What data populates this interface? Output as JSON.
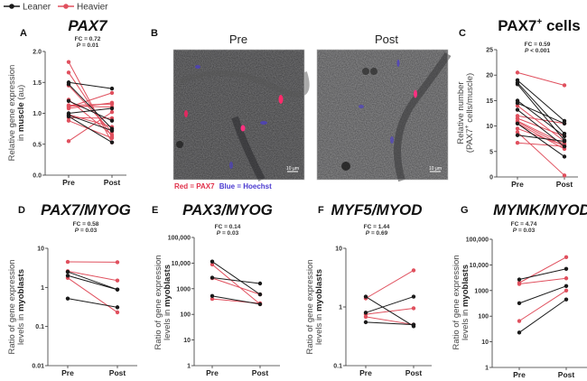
{
  "legend": {
    "items": [
      {
        "label": "Leaner",
        "color": "#1a1a1a"
      },
      {
        "label": "Heavier",
        "color": "#e0505e"
      }
    ]
  },
  "images": {
    "letter": "B",
    "pre_label": "Pre",
    "post_label": "Post",
    "scale_bar": "10 µm",
    "stain_red": "Red = PAX7",
    "stain_blue": "Blue = Hoechst",
    "stain_red_color": "#e0304a",
    "stain_blue_color": "#4a3ad0"
  },
  "chart_data": [
    {
      "panel": "A",
      "type": "line",
      "title": "PAX7",
      "title_italic": true,
      "title_sup": "",
      "stat_fc": "FC = 0.72",
      "stat_p_symbol": "P",
      "stat_p_text": " = 0.01",
      "ylabel": [
        "Relative gene expression",
        "in ",
        "muscle",
        " (au)"
      ],
      "scale": "linear",
      "ylim": [
        0,
        2
      ],
      "yticks": [
        0,
        0.5,
        1,
        1.5,
        2
      ],
      "ytick_labels": [
        "0.0",
        "0.5",
        "1.0",
        "1.5",
        "2.0"
      ],
      "categories": [
        "Pre",
        "Post"
      ],
      "series": [
        {
          "group": "Heavier",
          "values": [
            1.83,
            0.53
          ]
        },
        {
          "group": "Heavier",
          "values": [
            1.66,
            0.62
          ]
        },
        {
          "group": "Leaner",
          "values": [
            1.5,
            1.4
          ]
        },
        {
          "group": "Leaner",
          "values": [
            1.47,
            0.75
          ]
        },
        {
          "group": "Heavier",
          "values": [
            1.45,
            0.7
          ]
        },
        {
          "group": "Heavier",
          "values": [
            1.22,
            0.65
          ]
        },
        {
          "group": "Leaner",
          "values": [
            1.2,
            0.88
          ]
        },
        {
          "group": "Heavier",
          "values": [
            1.13,
            1.15
          ]
        },
        {
          "group": "Heavier",
          "values": [
            1.12,
            1.1
          ]
        },
        {
          "group": "Heavier",
          "values": [
            1.1,
            1.33
          ]
        },
        {
          "group": "Heavier",
          "values": [
            1.08,
            1.17
          ]
        },
        {
          "group": "Leaner",
          "values": [
            1.0,
            1.08
          ]
        },
        {
          "group": "Heavier",
          "values": [
            0.98,
            0.78
          ]
        },
        {
          "group": "Leaner",
          "values": [
            0.97,
            0.72
          ]
        },
        {
          "group": "Leaner",
          "values": [
            0.95,
            0.53
          ]
        },
        {
          "group": "Heavier",
          "values": [
            0.93,
            0.92
          ]
        },
        {
          "group": "Heavier",
          "values": [
            0.88,
            0.6
          ]
        },
        {
          "group": "Heavier",
          "values": [
            0.55,
            1.02
          ]
        }
      ]
    },
    {
      "panel": "C",
      "type": "line",
      "title": "PAX7",
      "title_italic": false,
      "title_sup": "+",
      "title_suffix": " cells",
      "stat_fc": "FC = 0.59",
      "stat_p_symbol": "P",
      "stat_p_text": " < 0.001",
      "ylabel": [
        "Relative number",
        "(PAX7",
        "+",
        " cells/muscle)"
      ],
      "scale": "linear",
      "ylim": [
        0,
        25
      ],
      "yticks": [
        0,
        5,
        10,
        15,
        20,
        25
      ],
      "ytick_labels": [
        "0",
        "5",
        "10",
        "15",
        "20",
        "25"
      ],
      "categories": [
        "Pre",
        "Post"
      ],
      "series": [
        {
          "group": "Heavier",
          "values": [
            20.5,
            18.0
          ]
        },
        {
          "group": "Leaner",
          "values": [
            19.0,
            11.0
          ]
        },
        {
          "group": "Leaner",
          "values": [
            18.5,
            8.5
          ]
        },
        {
          "group": "Leaner",
          "values": [
            18.2,
            7.2
          ]
        },
        {
          "group": "Leaner",
          "values": [
            15.0,
            8.0
          ]
        },
        {
          "group": "Leaner",
          "values": [
            14.5,
            10.5
          ]
        },
        {
          "group": "Heavier",
          "values": [
            14.0,
            7.0
          ]
        },
        {
          "group": "Leaner",
          "values": [
            13.2,
            6.0
          ]
        },
        {
          "group": "Heavier",
          "values": [
            12.0,
            10.5
          ]
        },
        {
          "group": "Heavier",
          "values": [
            11.5,
            8.0
          ]
        },
        {
          "group": "Heavier",
          "values": [
            11.0,
            6.5
          ]
        },
        {
          "group": "Heavier",
          "values": [
            10.8,
            6.0
          ]
        },
        {
          "group": "Heavier",
          "values": [
            10.5,
            5.5
          ]
        },
        {
          "group": "Leaner",
          "values": [
            10.5,
            4.0
          ]
        },
        {
          "group": "Heavier",
          "values": [
            9.5,
            6.2
          ]
        },
        {
          "group": "Heavier",
          "values": [
            8.8,
            0.3
          ]
        },
        {
          "group": "Leaner",
          "values": [
            8.2,
            7.0
          ]
        },
        {
          "group": "Heavier",
          "values": [
            6.7,
            6.0
          ]
        }
      ]
    },
    {
      "panel": "D",
      "type": "line",
      "title": "PAX7/MYOG",
      "title_italic": true,
      "title_sup": "",
      "stat_fc": "FC = 0.58",
      "stat_p_symbol": "P",
      "stat_p_text": " = 0.03",
      "ylabel": [
        "Ratio of gene expression",
        "levels in ",
        "myoblasts",
        ""
      ],
      "scale": "log",
      "ylim": [
        0.01,
        10
      ],
      "yticks": [
        0.01,
        0.1,
        1,
        10
      ],
      "ytick_labels": [
        "0.01",
        "0.1",
        "1",
        "10"
      ],
      "categories": [
        "Pre",
        "Post"
      ],
      "series": [
        {
          "group": "Heavier",
          "values": [
            4.5,
            4.4
          ]
        },
        {
          "group": "Heavier",
          "values": [
            2.6,
            1.5
          ]
        },
        {
          "group": "Leaner",
          "values": [
            2.5,
            0.88
          ]
        },
        {
          "group": "Leaner",
          "values": [
            2.0,
            0.88
          ]
        },
        {
          "group": "Heavier",
          "values": [
            1.75,
            0.23
          ]
        },
        {
          "group": "Leaner",
          "values": [
            0.52,
            0.31
          ]
        }
      ]
    },
    {
      "panel": "E",
      "type": "line",
      "title": "PAX3/MYOG",
      "title_italic": true,
      "title_sup": "",
      "stat_fc": "FC = 0.14",
      "stat_p_symbol": "P",
      "stat_p_text": " = 0.03",
      "ylabel": [
        "Ratio of gene expression",
        "levels in ",
        "myoblasts",
        ""
      ],
      "scale": "log",
      "ylim": [
        1,
        100000
      ],
      "yticks": [
        1,
        10,
        100,
        1000,
        10000,
        100000
      ],
      "ytick_labels": [
        "1",
        "10",
        "100",
        "1000",
        "10,000",
        "100,000"
      ],
      "categories": [
        "Pre",
        "Post"
      ],
      "series": [
        {
          "group": "Leaner",
          "values": [
            11500,
            600
          ]
        },
        {
          "group": "Heavier",
          "values": [
            8800,
            250
          ]
        },
        {
          "group": "Leaner",
          "values": [
            2700,
            1600
          ]
        },
        {
          "group": "Heavier",
          "values": [
            2600,
            600
          ]
        },
        {
          "group": "Leaner",
          "values": [
            520,
            250
          ]
        },
        {
          "group": "Heavier",
          "values": [
            400,
            270
          ]
        }
      ]
    },
    {
      "panel": "F",
      "type": "line",
      "title": "MYF5/MYOD",
      "title_italic": true,
      "title_sup": "",
      "stat_fc": "FC = 1.44",
      "stat_p_symbol": "P",
      "stat_p_text": " = 0.69",
      "ylabel": [
        "Ratio of gene expression",
        "levels in ",
        "myoblasts",
        ""
      ],
      "scale": "log",
      "ylim": [
        0.1,
        10
      ],
      "yticks": [
        0.1,
        1,
        10
      ],
      "ytick_labels": [
        "0.1",
        "1",
        "10"
      ],
      "categories": [
        "Pre",
        "Post"
      ],
      "series": [
        {
          "group": "Leaner",
          "values": [
            1.5,
            0.47
          ]
        },
        {
          "group": "Heavier",
          "values": [
            1.4,
            4.2
          ]
        },
        {
          "group": "Leaner",
          "values": [
            0.8,
            1.5
          ]
        },
        {
          "group": "Heavier",
          "values": [
            0.75,
            0.95
          ]
        },
        {
          "group": "Heavier",
          "values": [
            0.68,
            0.5
          ]
        },
        {
          "group": "Leaner",
          "values": [
            0.55,
            0.5
          ]
        }
      ]
    },
    {
      "panel": "G",
      "type": "line",
      "title": "MYMK/MYOD",
      "title_italic": true,
      "title_sup": "",
      "stat_fc": "FC = 4.74",
      "stat_p_symbol": "P",
      "stat_p_text": " = 0.03",
      "ylabel": [
        "Ratio of gene expression",
        "levels in ",
        "myoblasts",
        ""
      ],
      "scale": "log",
      "ylim": [
        1,
        100000
      ],
      "yticks": [
        1,
        10,
        100,
        1000,
        10000,
        100000
      ],
      "ytick_labels": [
        "1",
        "10",
        "100",
        "1000",
        "10,000",
        "100,000"
      ],
      "categories": [
        "Pre",
        "Post"
      ],
      "series": [
        {
          "group": "Leaner",
          "values": [
            2700,
            7000
          ]
        },
        {
          "group": "Heavier",
          "values": [
            2000,
            20000
          ]
        },
        {
          "group": "Heavier",
          "values": [
            1800,
            3000
          ]
        },
        {
          "group": "Leaner",
          "values": [
            320,
            1500
          ]
        },
        {
          "group": "Heavier",
          "values": [
            65,
            1000
          ]
        },
        {
          "group": "Leaner",
          "values": [
            23,
            450
          ]
        }
      ]
    }
  ]
}
